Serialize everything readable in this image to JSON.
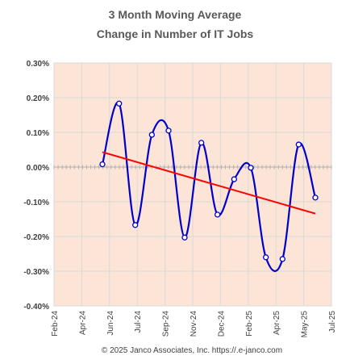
{
  "chart_data": {
    "type": "line",
    "title_lines": [
      "3 Month Moving Average",
      "Change in Number of IT Jobs"
    ],
    "y_ticks": [
      "0.30%",
      "0.20%",
      "0.10%",
      "0.00%",
      "-0.10%",
      "-0.20%",
      "-0.30%",
      "-0.40%"
    ],
    "ylim": [
      -0.4,
      0.3
    ],
    "x_ticks": [
      "Feb-24",
      "Apr-24",
      "Jun-24",
      "Jul-24",
      "Sep-24",
      "Nov-24",
      "Dec-24",
      "Feb-25",
      "Apr-25",
      "May-25",
      "Jul-25"
    ],
    "xlim": [
      "2024-02-01",
      "2025-07-01"
    ],
    "grid": true,
    "series": [
      {
        "style": "smoothed line with circle markers",
        "color": "#0000cc",
        "points": [
          {
            "x": "2024-05",
            "y": 0.008
          },
          {
            "x": "2024-06",
            "y": 0.183
          },
          {
            "x": "2024-07",
            "y": -0.167
          },
          {
            "x": "2024-08",
            "y": 0.093
          },
          {
            "x": "2024-09",
            "y": 0.105
          },
          {
            "x": "2024-10",
            "y": -0.203
          },
          {
            "x": "2024-11",
            "y": 0.07
          },
          {
            "x": "2024-12",
            "y": -0.137
          },
          {
            "x": "2025-01",
            "y": -0.035
          },
          {
            "x": "2025-02",
            "y": -0.002
          },
          {
            "x": "2025-03",
            "y": -0.26
          },
          {
            "x": "2025-04",
            "y": -0.265
          },
          {
            "x": "2025-05",
            "y": 0.065
          },
          {
            "x": "2025-06",
            "y": -0.088
          }
        ]
      },
      {
        "style": "linear trend line",
        "color": "#ff0000",
        "points": [
          {
            "x": "2024-05",
            "y": 0.043
          },
          {
            "x": "2025-06",
            "y": -0.134
          }
        ]
      }
    ],
    "plot_background": "#fce5d6",
    "grid_color": "#d9d9d9"
  },
  "footer": {
    "credit": "© 2025 Janco Associates, Inc. https://.e-janco.com"
  }
}
